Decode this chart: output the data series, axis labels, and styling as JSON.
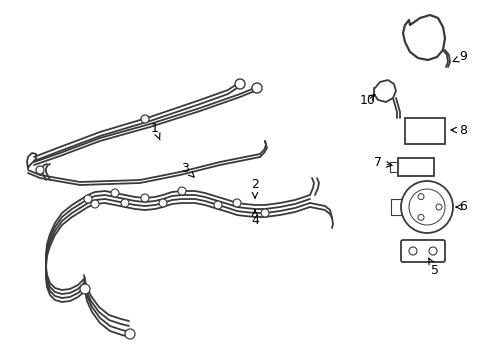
{
  "background_color": "#ffffff",
  "line_color": "#3a3a3a",
  "lw": 1.3,
  "fig_width": 4.89,
  "fig_height": 3.6,
  "dpi": 100
}
